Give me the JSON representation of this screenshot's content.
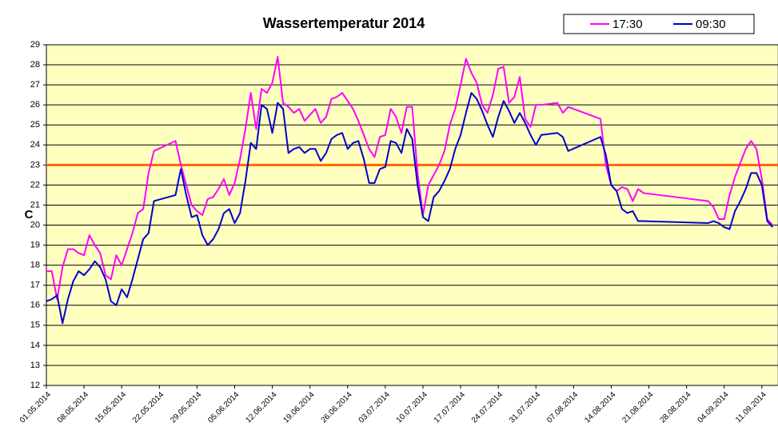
{
  "chart_data": {
    "type": "line",
    "title": "Wassertemperatur 2014",
    "y_label": "C",
    "x": [
      "01.05.2014",
      "02.05.2014",
      "03.05.2014",
      "04.05.2014",
      "05.05.2014",
      "06.05.2014",
      "07.05.2014",
      "08.05.2014",
      "09.05.2014",
      "10.05.2014",
      "11.05.2014",
      "12.05.2014",
      "13.05.2014",
      "14.05.2014",
      "15.05.2014",
      "16.05.2014",
      "17.05.2014",
      "18.05.2014",
      "19.05.2014",
      "20.05.2014",
      "21.05.2014",
      "25.05.2014",
      "26.05.2014",
      "27.05.2014",
      "28.05.2014",
      "29.05.2014",
      "30.05.2014",
      "31.05.2014",
      "01.06.2014",
      "02.06.2014",
      "03.06.2014",
      "04.06.2014",
      "05.06.2014",
      "06.06.2014",
      "07.06.2014",
      "08.06.2014",
      "09.06.2014",
      "10.06.2014",
      "11.06.2014",
      "12.06.2014",
      "13.06.2014",
      "14.06.2014",
      "15.06.2014",
      "16.06.2014",
      "17.06.2014",
      "18.06.2014",
      "19.06.2014",
      "20.06.2014",
      "21.06.2014",
      "22.06.2014",
      "23.06.2014",
      "24.06.2014",
      "25.06.2014",
      "26.06.2014",
      "27.06.2014",
      "28.06.2014",
      "29.06.2014",
      "30.06.2014",
      "01.07.2014",
      "02.07.2014",
      "03.07.2014",
      "04.07.2014",
      "05.07.2014",
      "06.07.2014",
      "07.07.2014",
      "08.07.2014",
      "09.07.2014",
      "10.07.2014",
      "11.07.2014",
      "12.07.2014",
      "13.07.2014",
      "14.07.2014",
      "15.07.2014",
      "16.07.2014",
      "17.07.2014",
      "18.07.2014",
      "19.07.2014",
      "20.07.2014",
      "21.07.2014",
      "22.07.2014",
      "23.07.2014",
      "24.07.2014",
      "25.07.2014",
      "26.07.2014",
      "27.07.2014",
      "28.07.2014",
      "29.07.2014",
      "30.07.2014",
      "31.07.2014",
      "01.08.2014",
      "04.08.2014",
      "05.08.2014",
      "06.08.2014",
      "12.08.2014",
      "13.08.2014",
      "14.08.2014",
      "15.08.2014",
      "16.08.2014",
      "17.08.2014",
      "18.08.2014",
      "19.08.2014",
      "20.08.2014",
      "01.09.2014",
      "02.09.2014",
      "03.09.2014",
      "04.09.2014",
      "05.09.2014",
      "06.09.2014",
      "07.09.2014",
      "08.09.2014",
      "09.09.2014",
      "10.09.2014",
      "11.09.2014",
      "12.09.2014",
      "13.09.2014"
    ],
    "series": [
      {
        "name": "17:30",
        "color": "#ff00ff",
        "values": [
          17.7,
          17.7,
          16.3,
          17.9,
          18.8,
          18.8,
          18.6,
          18.5,
          19.5,
          19.0,
          18.6,
          17.5,
          17.3,
          18.5,
          18.0,
          18.8,
          19.6,
          20.6,
          20.8,
          22.6,
          23.7,
          24.2,
          23.0,
          22.0,
          21.0,
          20.7,
          20.5,
          21.3,
          21.4,
          21.8,
          22.3,
          21.5,
          22.1,
          23.3,
          24.8,
          26.6,
          24.8,
          26.8,
          26.6,
          27.1,
          28.4,
          26.1,
          25.9,
          25.6,
          25.8,
          25.2,
          25.5,
          25.8,
          25.1,
          25.4,
          26.3,
          26.4,
          26.6,
          26.2,
          25.8,
          25.2,
          24.5,
          23.8,
          23.4,
          24.4,
          24.5,
          25.8,
          25.4,
          24.6,
          25.9,
          25.9,
          22.6,
          20.5,
          22.0,
          22.5,
          23.0,
          23.7,
          25.0,
          25.8,
          27.0,
          28.3,
          27.6,
          27.1,
          26.0,
          25.6,
          26.5,
          27.8,
          27.9,
          26.1,
          26.4,
          27.4,
          25.3,
          24.9,
          26.0,
          26.0,
          26.1,
          25.6,
          25.9,
          25.3,
          23.0,
          22.0,
          21.7,
          21.9,
          21.8,
          21.2,
          21.8,
          21.6,
          21.2,
          20.9,
          20.3,
          20.3,
          21.5,
          22.4,
          23.1,
          23.8,
          24.2,
          23.8,
          22.3,
          20.3,
          20.0
        ]
      },
      {
        "name": "09:30",
        "color": "#0000cc",
        "values": [
          16.2,
          16.3,
          16.5,
          15.1,
          16.3,
          17.2,
          17.7,
          17.5,
          17.8,
          18.2,
          17.9,
          17.3,
          16.2,
          16.0,
          16.8,
          16.4,
          17.3,
          18.3,
          19.3,
          19.6,
          21.2,
          21.5,
          22.8,
          21.5,
          20.4,
          20.5,
          19.5,
          19.0,
          19.3,
          19.8,
          20.6,
          20.8,
          20.1,
          20.6,
          22.2,
          24.1,
          23.8,
          26.0,
          25.8,
          24.6,
          26.1,
          25.8,
          23.6,
          23.8,
          23.9,
          23.6,
          23.8,
          23.8,
          23.2,
          23.6,
          24.3,
          24.5,
          24.6,
          23.8,
          24.1,
          24.2,
          23.3,
          22.1,
          22.1,
          22.8,
          22.9,
          24.2,
          24.1,
          23.6,
          24.8,
          24.3,
          22.0,
          20.4,
          20.2,
          21.4,
          21.7,
          22.2,
          22.8,
          23.8,
          24.5,
          25.6,
          26.6,
          26.3,
          25.7,
          25.0,
          24.4,
          25.4,
          26.2,
          25.7,
          25.1,
          25.6,
          25.1,
          24.5,
          24.0,
          24.5,
          24.6,
          24.4,
          23.7,
          24.4,
          23.5,
          22.0,
          21.7,
          20.8,
          20.6,
          20.7,
          20.2,
          20.2,
          20.1,
          20.2,
          20.1,
          19.9,
          19.8,
          20.7,
          21.2,
          21.8,
          22.6,
          22.6,
          22.0,
          20.2,
          19.9
        ]
      }
    ],
    "xlim": [
      "01.05.2014",
      "14.09.2014"
    ],
    "xticks": [
      "01.05.2014",
      "08.05.2014",
      "15.05.2014",
      "22.05.2014",
      "29.05.2014",
      "05.06.2014",
      "12.06.2014",
      "19.06.2014",
      "26.06.2014",
      "03.07.2014",
      "10.07.2014",
      "17.07.2014",
      "24.07.2014",
      "31.07.2014",
      "07.08.2014",
      "14.08.2014",
      "21.08.2014",
      "28.08.2014",
      "04.09.2014",
      "11.09.2014"
    ],
    "ylim": [
      12,
      29
    ],
    "yticks": [
      12,
      13,
      14,
      15,
      16,
      17,
      18,
      19,
      20,
      21,
      22,
      23,
      24,
      25,
      26,
      27,
      28,
      29
    ],
    "grid": true,
    "reference_line": {
      "value": 23,
      "color": "#ff6600"
    },
    "plot_background": "#ffffc0",
    "legend": "top-right"
  }
}
